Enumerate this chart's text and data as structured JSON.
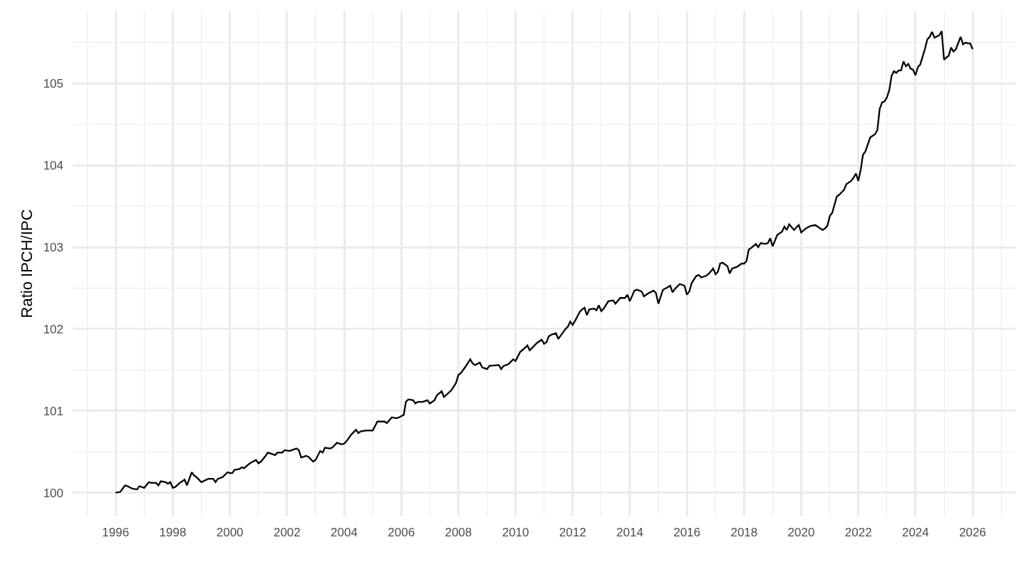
{
  "chart_data": {
    "type": "line",
    "ylabel": "Ratio IPCH/IPC",
    "color": "#000000",
    "grid": true,
    "x": [
      "1996-01",
      "1996-03",
      "1996-05",
      "1996-06",
      "1996-08",
      "1996-10",
      "1996-11",
      "1997-01",
      "1997-03",
      "1997-04",
      "1997-06",
      "1997-07",
      "1997-08",
      "1997-10",
      "1997-11",
      "1997-12",
      "1998-01",
      "1998-02",
      "1998-04",
      "1998-06",
      "1998-07",
      "1998-09",
      "1998-10",
      "1998-11",
      "1999-01",
      "1999-04",
      "1999-06",
      "1999-07",
      "1999-08",
      "1999-10",
      "1999-12",
      "2000-01",
      "2000-02",
      "2000-03",
      "2000-05",
      "2000-06",
      "2000-07",
      "2000-09",
      "2000-10",
      "2000-12",
      "2001-01",
      "2001-02",
      "2001-04",
      "2001-05",
      "2001-07",
      "2001-08",
      "2001-09",
      "2001-11",
      "2001-12",
      "2002-02",
      "2002-05",
      "2002-06",
      "2002-07",
      "2002-09",
      "2002-10",
      "2002-12",
      "2003-01",
      "2003-03",
      "2003-04",
      "2003-05",
      "2003-07",
      "2003-08",
      "2003-10",
      "2003-12",
      "2004-01",
      "2004-02",
      "2004-04",
      "2004-06",
      "2004-07",
      "2004-08",
      "2004-10",
      "2004-11",
      "2005-01",
      "2005-03",
      "2005-05",
      "2005-06",
      "2005-07",
      "2005-09",
      "2005-11",
      "2005-12",
      "2006-02",
      "2006-03",
      "2006-04",
      "2006-06",
      "2006-07",
      "2006-08",
      "2006-10",
      "2006-12",
      "2007-01",
      "2007-03",
      "2007-04",
      "2007-06",
      "2007-07",
      "2007-10",
      "2007-12",
      "2008-01",
      "2008-02",
      "2008-04",
      "2008-06",
      "2008-07",
      "2008-08",
      "2008-10",
      "2008-11",
      "2009-01",
      "2009-02",
      "2009-06",
      "2009-07",
      "2009-08",
      "2009-10",
      "2009-12",
      "2010-01",
      "2010-03",
      "2010-05",
      "2010-06",
      "2010-07",
      "2010-08",
      "2010-10",
      "2010-12",
      "2011-01",
      "2011-02",
      "2011-03",
      "2011-04",
      "2011-06",
      "2011-07",
      "2011-08",
      "2011-10",
      "2011-11",
      "2011-12",
      "2012-01",
      "2012-02",
      "2012-04",
      "2012-05",
      "2012-06",
      "2012-07",
      "2012-08",
      "2012-10",
      "2012-11",
      "2012-12",
      "2013-01",
      "2013-02",
      "2013-04",
      "2013-06",
      "2013-07",
      "2013-09",
      "2013-11",
      "2013-12",
      "2014-01",
      "2014-03",
      "2014-04",
      "2014-06",
      "2014-07",
      "2014-09",
      "2014-11",
      "2014-12",
      "2015-01",
      "2015-03",
      "2015-05",
      "2015-06",
      "2015-07",
      "2015-08",
      "2015-10",
      "2015-12",
      "2016-01",
      "2016-02",
      "2016-03",
      "2016-05",
      "2016-06",
      "2016-07",
      "2016-09",
      "2016-10",
      "2016-12",
      "2017-01",
      "2017-02",
      "2017-03",
      "2017-04",
      "2017-06",
      "2017-07",
      "2017-08",
      "2017-10",
      "2017-11",
      "2017-12",
      "2018-01",
      "2018-02",
      "2018-03",
      "2018-04",
      "2018-06",
      "2018-07",
      "2018-08",
      "2018-10",
      "2018-11",
      "2018-12",
      "2019-01",
      "2019-03",
      "2019-05",
      "2019-06",
      "2019-07",
      "2019-08",
      "2019-10",
      "2019-12",
      "2020-01",
      "2020-03",
      "2020-05",
      "2020-07",
      "2020-08",
      "2020-10",
      "2020-11",
      "2020-12",
      "2021-01",
      "2021-02",
      "2021-04",
      "2021-05",
      "2021-06",
      "2021-07",
      "2021-08",
      "2021-10",
      "2021-11",
      "2021-12",
      "2022-01",
      "2022-02",
      "2022-03",
      "2022-04",
      "2022-06",
      "2022-08",
      "2022-09",
      "2022-10",
      "2022-11",
      "2022-12",
      "2023-01",
      "2023-02",
      "2023-03",
      "2023-04",
      "2023-05",
      "2023-06",
      "2023-07",
      "2023-08",
      "2023-09",
      "2023-10",
      "2023-11",
      "2023-12",
      "2024-01",
      "2024-02",
      "2024-03",
      "2024-05",
      "2024-06",
      "2024-07",
      "2024-08",
      "2024-09",
      "2024-11",
      "2024-12",
      "2025-01",
      "2025-02",
      "2025-03",
      "2025-04",
      "2025-05",
      "2025-06",
      "2025-08",
      "2025-09",
      "2025-10",
      "2025-11",
      "2025-12",
      "2026-01"
    ],
    "values": [
      100.0,
      100.01,
      100.09,
      100.08,
      100.05,
      100.04,
      100.08,
      100.06,
      100.13,
      100.12,
      100.12,
      100.09,
      100.14,
      100.13,
      100.11,
      100.13,
      100.06,
      100.07,
      100.12,
      100.16,
      100.09,
      100.25,
      100.21,
      100.19,
      100.13,
      100.17,
      100.17,
      100.13,
      100.17,
      100.19,
      100.25,
      100.24,
      100.24,
      100.28,
      100.29,
      100.31,
      100.3,
      100.35,
      100.37,
      100.4,
      100.36,
      100.38,
      100.45,
      100.49,
      100.47,
      100.46,
      100.49,
      100.49,
      100.52,
      100.51,
      100.54,
      100.52,
      100.43,
      100.45,
      100.44,
      100.38,
      100.4,
      100.51,
      100.49,
      100.55,
      100.54,
      100.55,
      100.61,
      100.59,
      100.6,
      100.63,
      100.71,
      100.77,
      100.73,
      100.75,
      100.76,
      100.76,
      100.76,
      100.87,
      100.87,
      100.87,
      100.85,
      100.92,
      100.91,
      100.92,
      100.95,
      101.11,
      101.14,
      101.13,
      101.09,
      101.11,
      101.11,
      101.13,
      101.09,
      101.13,
      101.19,
      101.24,
      101.17,
      101.25,
      101.34,
      101.44,
      101.46,
      101.54,
      101.63,
      101.58,
      101.56,
      101.59,
      101.53,
      101.51,
      101.55,
      101.56,
      101.51,
      101.55,
      101.57,
      101.63,
      101.61,
      101.72,
      101.77,
      101.8,
      101.74,
      101.77,
      101.83,
      101.87,
      101.82,
      101.84,
      101.91,
      101.93,
      101.95,
      101.88,
      101.92,
      102.0,
      102.03,
      102.09,
      102.05,
      102.1,
      102.21,
      102.24,
      102.26,
      102.17,
      102.24,
      102.25,
      102.23,
      102.29,
      102.22,
      102.25,
      102.34,
      102.35,
      102.31,
      102.38,
      102.38,
      102.42,
      102.34,
      102.47,
      102.48,
      102.46,
      102.4,
      102.44,
      102.47,
      102.44,
      102.31,
      102.48,
      102.51,
      102.53,
      102.45,
      102.49,
      102.55,
      102.53,
      102.42,
      102.46,
      102.56,
      102.65,
      102.66,
      102.63,
      102.65,
      102.67,
      102.74,
      102.67,
      102.7,
      102.8,
      102.81,
      102.77,
      102.68,
      102.74,
      102.76,
      102.78,
      102.8,
      102.8,
      102.83,
      102.97,
      102.99,
      103.04,
      103.0,
      103.05,
      103.04,
      103.05,
      103.11,
      103.01,
      103.15,
      103.19,
      103.25,
      103.21,
      103.28,
      103.21,
      103.27,
      103.18,
      103.23,
      103.26,
      103.27,
      103.25,
      103.21,
      103.23,
      103.26,
      103.38,
      103.42,
      103.62,
      103.64,
      103.67,
      103.7,
      103.77,
      103.81,
      103.85,
      103.9,
      103.81,
      103.95,
      104.13,
      104.17,
      104.34,
      104.38,
      104.43,
      104.69,
      104.77,
      104.78,
      104.83,
      104.92,
      105.09,
      105.15,
      105.13,
      105.16,
      105.16,
      105.27,
      105.21,
      105.24,
      105.18,
      105.17,
      105.1,
      105.2,
      105.23,
      105.42,
      105.54,
      105.57,
      105.63,
      105.56,
      105.59,
      105.64,
      105.29,
      105.32,
      105.34,
      105.44,
      105.39,
      105.42,
      105.57,
      105.48,
      105.5,
      105.49,
      105.49,
      105.42
    ],
    "xlim": [
      "1994-07",
      "2027-07"
    ],
    "ylim": [
      99.71,
      105.89
    ],
    "xticks": [
      {
        "value": "1995",
        "label": null
      },
      "1996",
      {
        "value": "1997",
        "label": null
      },
      "1998",
      {
        "value": "1999",
        "label": null
      },
      "2000",
      {
        "value": "2001",
        "label": null
      },
      "2002",
      {
        "value": "2003",
        "label": null
      },
      "2004",
      {
        "value": "2005",
        "label": null
      },
      "2006",
      {
        "value": "2007",
        "label": null
      },
      "2008",
      {
        "value": "2009",
        "label": null
      },
      "2010",
      {
        "value": "2011",
        "label": null
      },
      "2012",
      {
        "value": "2013",
        "label": null
      },
      "2014",
      {
        "value": "2015",
        "label": null
      },
      "2016",
      {
        "value": "2017",
        "label": null
      },
      "2018",
      {
        "value": "2019",
        "label": null
      },
      "2020",
      {
        "value": "2021",
        "label": null
      },
      "2022",
      {
        "value": "2023",
        "label": null
      },
      "2024",
      {
        "value": "2025",
        "label": null
      },
      "2026",
      {
        "value": "2027",
        "label": null
      }
    ],
    "yticks": [
      100,
      {
        "value": 100.5,
        "label": null
      },
      101,
      {
        "value": 101.5,
        "label": null
      },
      102,
      {
        "value": 102.5,
        "label": null
      },
      103,
      {
        "value": 103.5,
        "label": null
      },
      104,
      {
        "value": 104.5,
        "label": null
      },
      105,
      {
        "value": 105.5,
        "label": null
      }
    ]
  }
}
